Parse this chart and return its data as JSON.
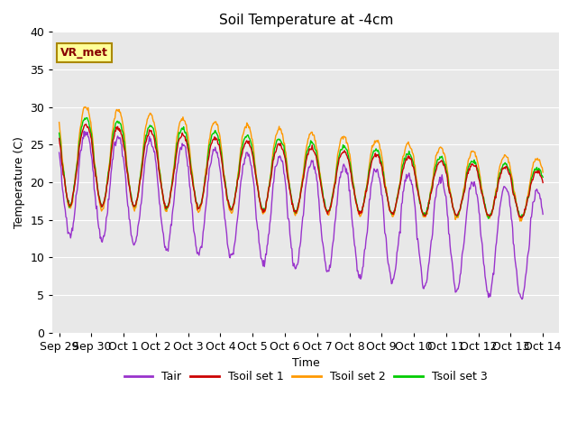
{
  "title": "Soil Temperature at -4cm",
  "xlabel": "Time",
  "ylabel": "Temperature (C)",
  "ylim": [
    0,
    40
  ],
  "bg_color": "#e8e8e8",
  "fig_bg": "#ffffff",
  "grid_color": "#ffffff",
  "line_colors": {
    "Tair": "#9933cc",
    "Tsoil1": "#cc0000",
    "Tsoil2": "#ff9900",
    "Tsoil3": "#00cc00"
  },
  "legend_labels": [
    "Tair",
    "Tsoil set 1",
    "Tsoil set 2",
    "Tsoil set 3"
  ],
  "annotation_text": "VR_met",
  "annotation_color": "#880000",
  "annotation_bg": "#ffff99",
  "tick_labels": [
    "Sep 29",
    "Sep 30",
    "Oct 1",
    "Oct 2",
    "Oct 3",
    "Oct 4",
    "Oct 5",
    "Oct 6",
    "Oct 7",
    "Oct 8",
    "Oct 9",
    "Oct 10",
    "Oct 11",
    "Oct 12",
    "Oct 13",
    "Oct 14"
  ],
  "tick_positions": [
    0,
    1,
    2,
    3,
    4,
    5,
    6,
    7,
    8,
    9,
    10,
    11,
    12,
    13,
    14,
    15
  ],
  "ytick_positions": [
    0,
    5,
    10,
    15,
    20,
    25,
    30,
    35,
    40
  ]
}
